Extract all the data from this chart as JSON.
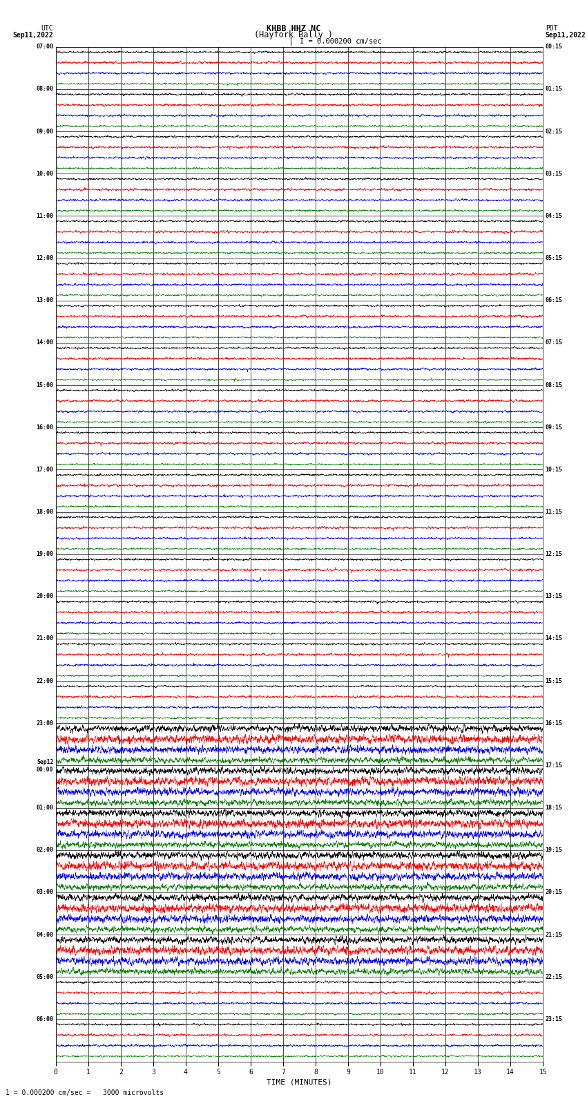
{
  "title_line1": "KHBB HHZ NC",
  "title_line2": "(Hayfork Bally )",
  "scale_label": "I = 0.000200 cm/sec",
  "left_label_top": "UTC",
  "left_label_date": "Sep11,2022",
  "right_label_top": "PDT",
  "right_label_date": "Sep11,2022",
  "bottom_note": "1 = 0.000200 cm/sec =   3000 microvolts",
  "xlabel": "TIME (MINUTES)",
  "xlim": [
    0,
    15
  ],
  "xticks": [
    0,
    1,
    2,
    3,
    4,
    5,
    6,
    7,
    8,
    9,
    10,
    11,
    12,
    13,
    14,
    15
  ],
  "left_times": [
    "07:00",
    "08:00",
    "09:00",
    "10:00",
    "11:00",
    "12:00",
    "13:00",
    "14:00",
    "15:00",
    "16:00",
    "17:00",
    "18:00",
    "19:00",
    "20:00",
    "21:00",
    "22:00",
    "23:00",
    "Sep12\n00:00",
    "01:00",
    "02:00",
    "03:00",
    "04:00",
    "05:00",
    "06:00"
  ],
  "right_times": [
    "00:15",
    "01:15",
    "02:15",
    "03:15",
    "04:15",
    "05:15",
    "06:15",
    "07:15",
    "08:15",
    "09:15",
    "10:15",
    "11:15",
    "12:15",
    "13:15",
    "14:15",
    "15:15",
    "16:15",
    "17:15",
    "18:15",
    "19:15",
    "20:15",
    "21:15",
    "22:15",
    "23:15"
  ],
  "n_hour_groups": 24,
  "traces_per_group": 4,
  "colors": [
    "black",
    "red",
    "blue",
    "green"
  ],
  "bg_color": "#ffffff",
  "plot_bg": "#ffffff",
  "figsize": [
    8.5,
    16.13
  ],
  "dpi": 100,
  "noise_amp": [
    0.08,
    0.1,
    0.09,
    0.07
  ],
  "high_amp_rows": [
    16,
    17,
    18,
    19,
    20,
    21
  ],
  "high_amp_scale": 3.5
}
